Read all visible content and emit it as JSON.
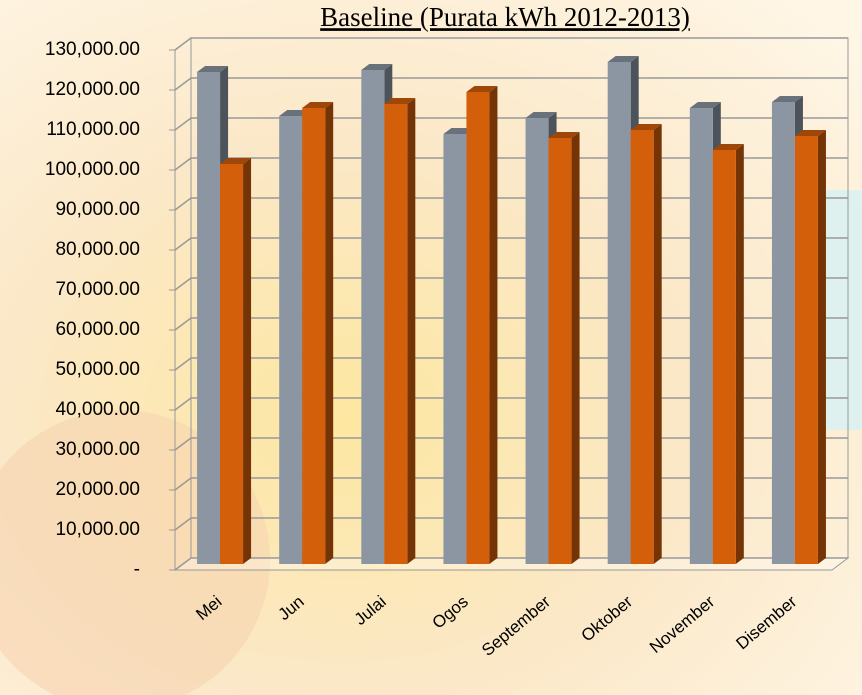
{
  "chart_data": {
    "type": "bar3d",
    "title": "Baseline (Purata kWh 2012-2013)",
    "categories": [
      "Mei",
      "Jun",
      "Julai",
      "Ogos",
      "September",
      "Oktober",
      "November",
      "Disember"
    ],
    "series": [
      {
        "color": "#8c96a3",
        "values": [
          123000,
          112000,
          123500,
          107500,
          111500,
          125500,
          114000,
          115500
        ]
      },
      {
        "color": "#d35f0a",
        "values": [
          100000,
          114000,
          115000,
          118000,
          106500,
          108500,
          103500,
          107000
        ]
      }
    ],
    "ylim": [
      0,
      130000
    ],
    "yticks": [
      {
        "value": 0,
        "label": "-"
      },
      {
        "value": 10000,
        "label": "10,000.00"
      },
      {
        "value": 20000,
        "label": "20,000.00"
      },
      {
        "value": 30000,
        "label": "30,000.00"
      },
      {
        "value": 40000,
        "label": "40,000.00"
      },
      {
        "value": 50000,
        "label": "50,000.00"
      },
      {
        "value": 60000,
        "label": "60,000.00"
      },
      {
        "value": 70000,
        "label": "70,000.00"
      },
      {
        "value": 80000,
        "label": "80,000.00"
      },
      {
        "value": 90000,
        "label": "90,000.00"
      },
      {
        "value": 100000,
        "label": "100,000.00"
      },
      {
        "value": 110000,
        "label": "110,000.00"
      },
      {
        "value": 120000,
        "label": "120,000.00"
      },
      {
        "value": 130000,
        "label": "130,000.00"
      }
    ],
    "grid": true
  }
}
